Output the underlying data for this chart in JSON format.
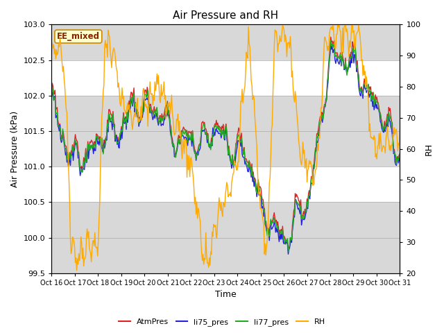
{
  "title": "Air Pressure and RH",
  "xlabel": "Time",
  "ylabel_left": "Air Pressure (kPa)",
  "ylabel_right": "RH",
  "ylim_left": [
    99.5,
    103.0
  ],
  "ylim_right": [
    20,
    100
  ],
  "yticks_left": [
    99.5,
    100.0,
    100.5,
    101.0,
    101.5,
    102.0,
    102.5,
    103.0
  ],
  "yticks_right": [
    20,
    30,
    40,
    50,
    60,
    70,
    80,
    90,
    100
  ],
  "x_labels": [
    "Oct 16",
    "Oct 17",
    "Oct 18",
    "Oct 19",
    "Oct 20",
    "Oct 21",
    "Oct 22",
    "Oct 23",
    "Oct 24",
    "Oct 25",
    "Oct 26",
    "Oct 27",
    "Oct 28",
    "Oct 29",
    "Oct 30",
    "Oct 31"
  ],
  "label_annotation": "EE_mixed",
  "annotation_facecolor": "#ffffcc",
  "annotation_edgecolor": "#cc8800",
  "annotation_textcolor": "#882200",
  "colors": {
    "AtmPres": "#dd2222",
    "li75_pres": "#2222dd",
    "li77_pres": "#22aa22",
    "RH": "#ffaa00"
  },
  "legend_labels": [
    "AtmPres",
    "li75_pres",
    "li77_pres",
    "RH"
  ],
  "gray_band_color": "#d8d8d8",
  "white_band_color": "#ffffff",
  "background_color": "#ffffff",
  "figsize": [
    6.4,
    4.8
  ],
  "dpi": 100
}
